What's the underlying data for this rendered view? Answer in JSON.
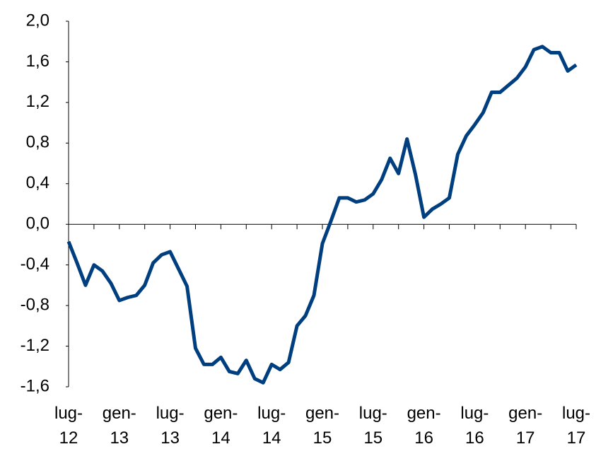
{
  "chart_data": {
    "type": "line",
    "categories": [
      "lug-\n12",
      null,
      null,
      null,
      null,
      null,
      "gen-\n13",
      null,
      null,
      null,
      null,
      null,
      "lug-\n13",
      null,
      null,
      null,
      null,
      null,
      "gen-\n14",
      null,
      null,
      null,
      null,
      null,
      "lug-\n14",
      null,
      null,
      null,
      null,
      null,
      "gen-\n15",
      null,
      null,
      null,
      null,
      null,
      "lug-\n15",
      null,
      null,
      null,
      null,
      null,
      "gen-\n16",
      null,
      null,
      null,
      null,
      null,
      "lug-\n16",
      null,
      null,
      null,
      null,
      null,
      "gen-\n17",
      null,
      null,
      null,
      null,
      null,
      "lug-\n17"
    ],
    "series": [
      {
        "color": "#003f7f",
        "values": [
          -0.17,
          -0.38,
          -0.6,
          -0.4,
          -0.46,
          -0.58,
          -0.75,
          -0.72,
          -0.7,
          -0.6,
          -0.38,
          -0.3,
          -0.27,
          -0.44,
          -0.61,
          -1.22,
          -1.38,
          -1.38,
          -1.31,
          -1.45,
          -1.47,
          -1.34,
          -1.52,
          -1.56,
          -1.38,
          -1.43,
          -1.36,
          -1.0,
          -0.9,
          -0.7,
          -0.19,
          0.03,
          0.26,
          0.26,
          0.22,
          0.24,
          0.3,
          0.44,
          0.65,
          0.5,
          0.84,
          0.49,
          0.07,
          0.15,
          0.2,
          0.26,
          0.69,
          0.87,
          0.98,
          1.1,
          1.3,
          1.3,
          1.37,
          1.44,
          1.55,
          1.72,
          1.75,
          1.69,
          1.69,
          1.51,
          1.57
        ]
      }
    ],
    "ylim": [
      -1.6,
      2.0
    ],
    "yticks": [
      {
        "value": -1.6,
        "label": "-1,6"
      },
      {
        "value": -1.2,
        "label": "-1,2"
      },
      {
        "value": -0.8,
        "label": "-0,8"
      },
      {
        "value": -0.4,
        "label": "-0,4"
      },
      {
        "value": 0,
        "label": "0,0"
      },
      {
        "value": 0.4,
        "label": "0,4"
      },
      {
        "value": 0.8,
        "label": "0,8"
      },
      {
        "value": 1.2,
        "label": "1,2"
      },
      {
        "value": 1.6,
        "label": "1,6"
      },
      {
        "value": 2.0,
        "label": "2,0"
      }
    ],
    "grid": false
  }
}
